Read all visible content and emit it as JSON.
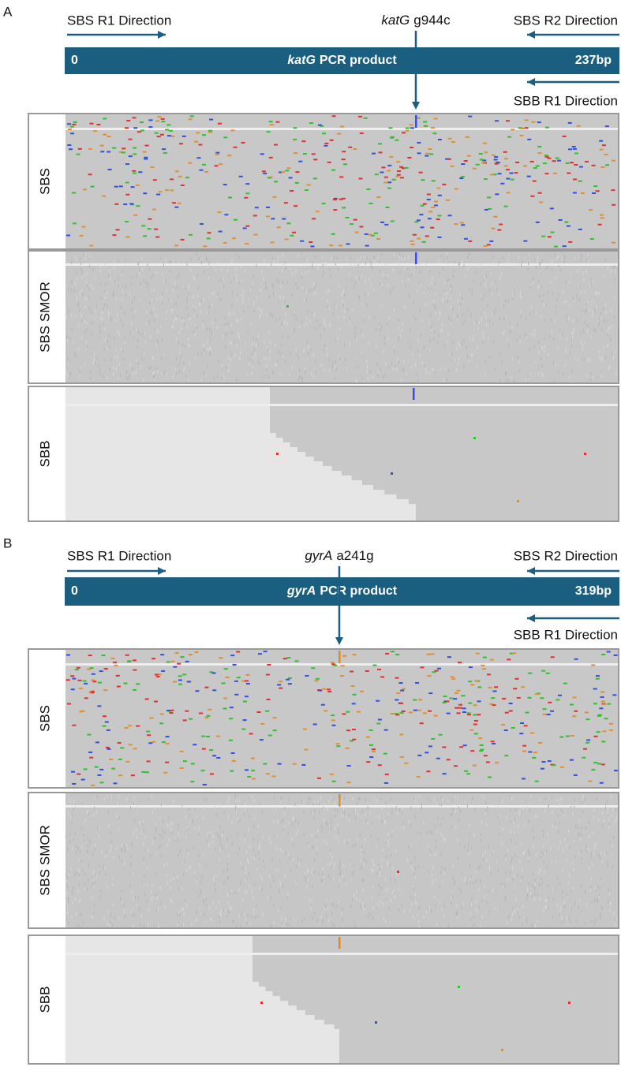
{
  "panels": [
    {
      "label": "A",
      "r1": "SBS R1 Direction",
      "variant": {
        "gene": "katG",
        "change": "g944c"
      },
      "r2": "SBS R2 Direction",
      "bar": {
        "start": "0",
        "gene": "katG",
        "product": "PCR product",
        "end": "237bp"
      },
      "sbb": "SBB R1 Direction",
      "tracks": [
        "SBS",
        "SBS SMOR",
        "SBB"
      ]
    },
    {
      "label": "B",
      "r1": "SBS R1 Direction",
      "variant": {
        "gene": "gyrA",
        "change": "a241g"
      },
      "r2": "SBS R2 Direction",
      "bar": {
        "start": "0",
        "gene": "gyrA",
        "product": "PCR product",
        "end": "319bp"
      },
      "sbb": "SBB R1 Direction",
      "tracks": [
        "SBS",
        "SBS SMOR",
        "SBB"
      ]
    }
  ]
}
